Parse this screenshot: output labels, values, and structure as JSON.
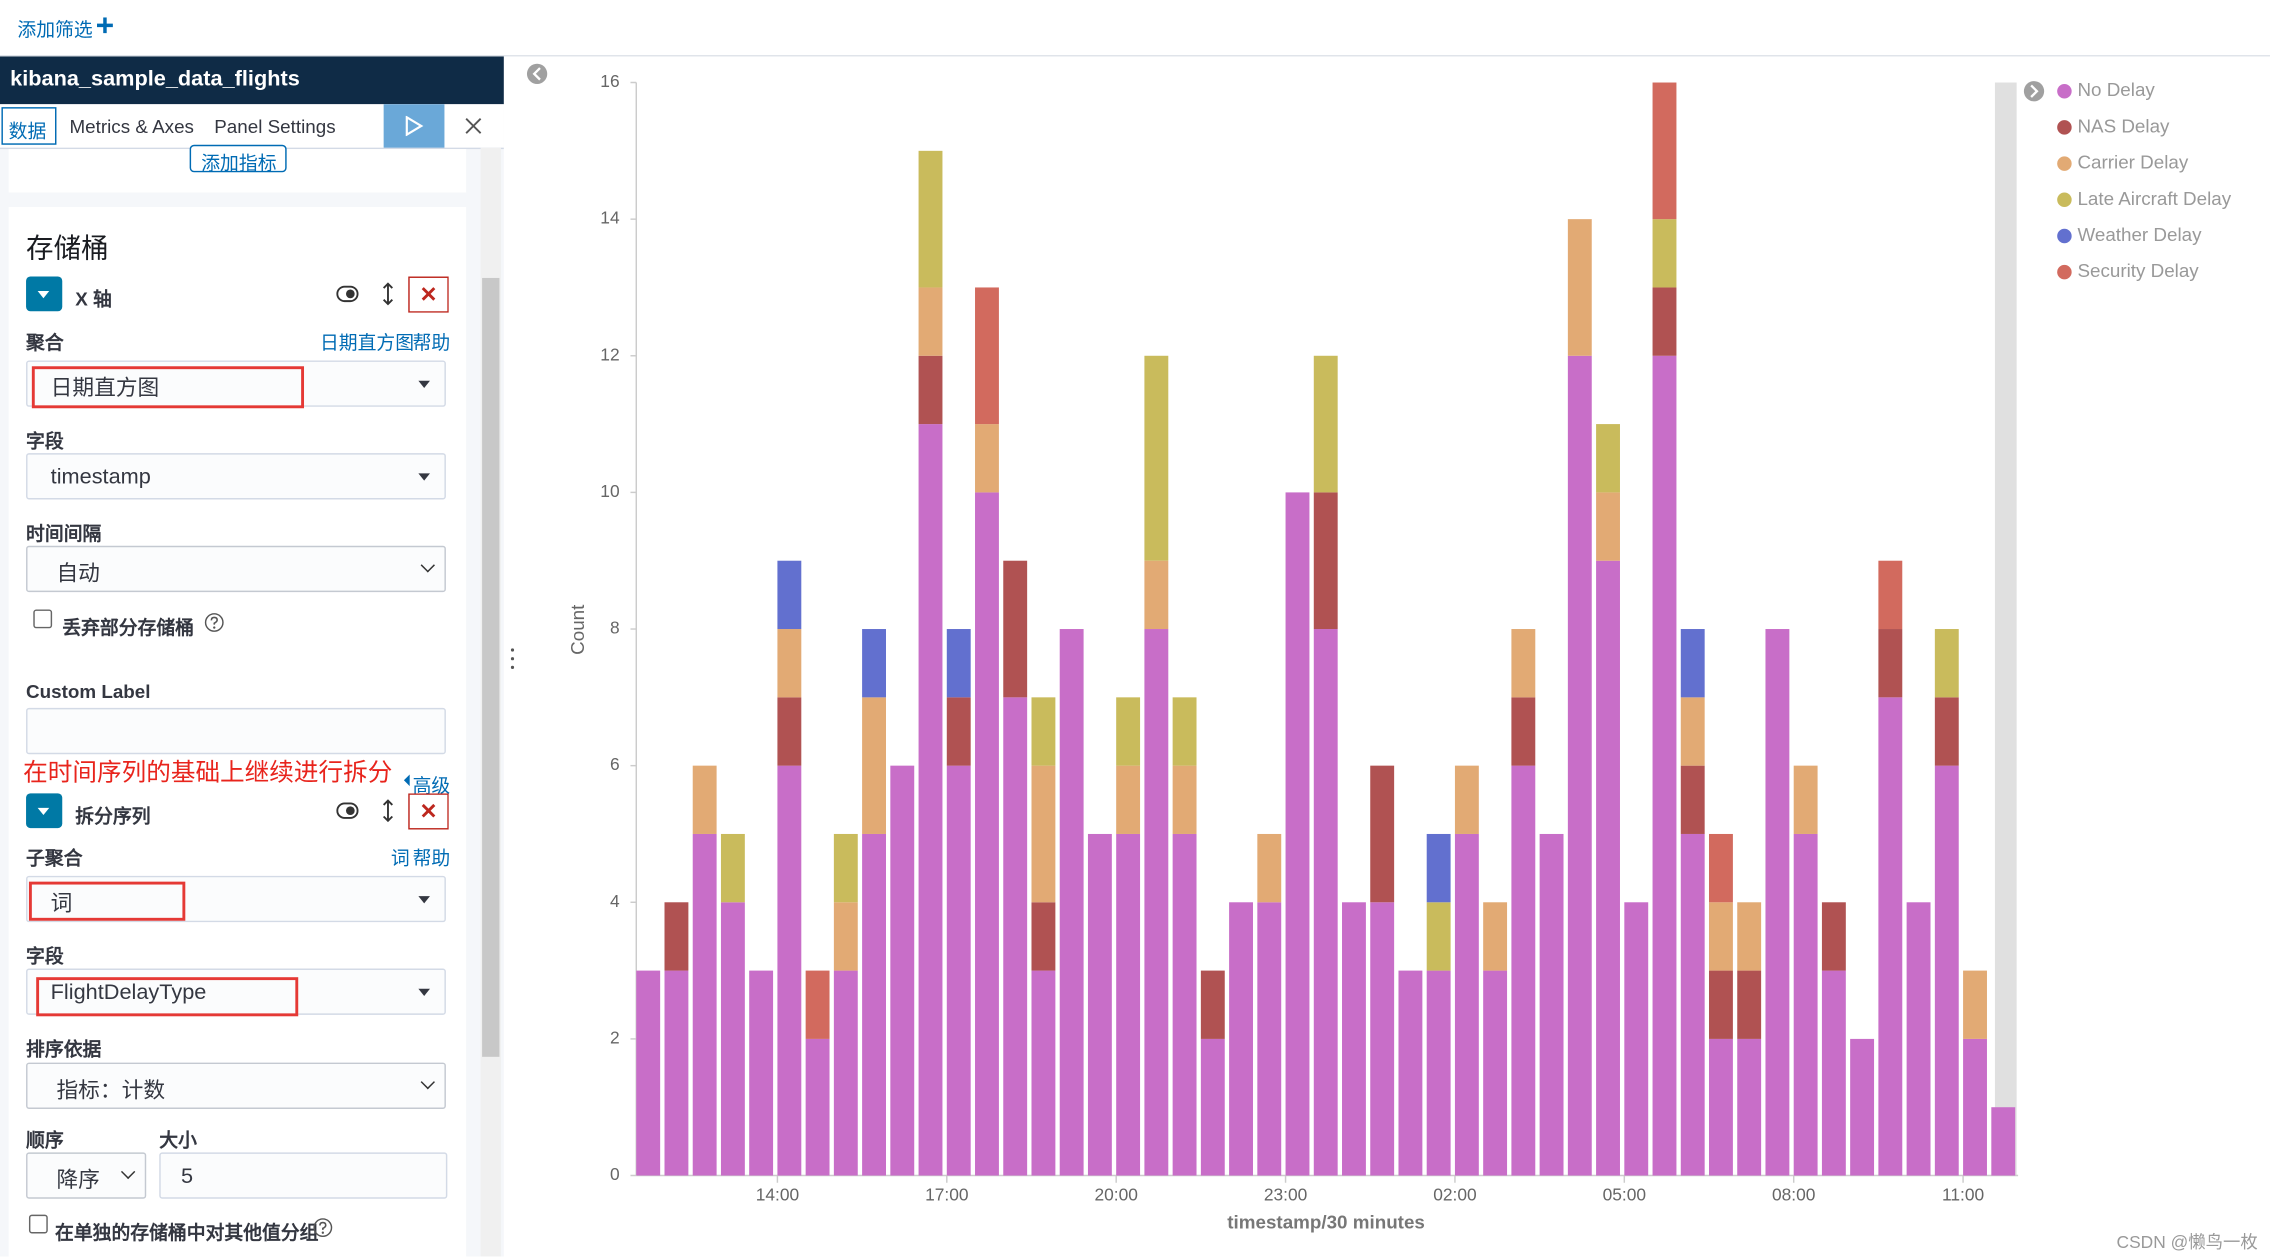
{
  "toolbar": {
    "add_filter": "添加筛选"
  },
  "sidebar": {
    "index_title": "kibana_sample_data_flights",
    "tabs": [
      "数据",
      "Metrics & Axes",
      "Panel Settings"
    ],
    "add_metric": "添加指标",
    "buckets_title": "存储桶",
    "x_axis": {
      "label": "X 轴",
      "aggregation_label": "聚合",
      "aggregation_link": "日期直方图",
      "help_link": "帮助",
      "aggregation": "日期直方图",
      "field_label": "字段",
      "field": "timestamp",
      "interval_label": "时间间隔",
      "interval": "自动",
      "drop_partial": "丢弃部分存储桶",
      "custom_label": "Custom Label"
    },
    "annotation": "在时间序列的基础上继续进行拆分",
    "advanced": "高级",
    "split": {
      "label": "拆分序列",
      "sub_agg_label": "子聚合",
      "sub_agg_link": "词",
      "help_link": "帮助",
      "sub_agg": "词",
      "field_label": "字段",
      "field": "FlightDelayType",
      "order_by_label": "排序依据",
      "order_by": "指标：计数",
      "order_label": "顺序",
      "order": "降序",
      "size_label": "大小",
      "size": 5,
      "other_bucket": "在单独的存储桶中对其他值分组"
    }
  },
  "chart_data": {
    "type": "bar",
    "stacked": true,
    "xlabel": "timestamp/30 minutes",
    "ylabel": "Count",
    "ylim": [
      0,
      16
    ],
    "yticks": [
      0,
      2,
      4,
      6,
      8,
      10,
      12,
      14,
      16
    ],
    "grid": false,
    "legend": "right",
    "categories": [
      null,
      null,
      null,
      null,
      null,
      "14:00",
      null,
      null,
      null,
      null,
      null,
      "17:00",
      null,
      null,
      null,
      null,
      null,
      "20:00",
      null,
      null,
      null,
      null,
      null,
      "23:00",
      null,
      null,
      null,
      null,
      null,
      "02:00",
      null,
      null,
      null,
      null,
      null,
      "05:00",
      null,
      null,
      null,
      null,
      null,
      "08:00",
      null,
      null,
      null,
      null,
      null,
      "11:00",
      null
    ],
    "series": [
      {
        "name": "No Delay",
        "color": "#c86ec8",
        "values": [
          3,
          3,
          5,
          4,
          3,
          6,
          2,
          3,
          5,
          6,
          11,
          6,
          10,
          7,
          3,
          8,
          5,
          5,
          8,
          5,
          2,
          4,
          4,
          10,
          8,
          4,
          4,
          3,
          3,
          5,
          3,
          6,
          5,
          12,
          9,
          4,
          12,
          5,
          2,
          2,
          8,
          5,
          3,
          2,
          7,
          4,
          6,
          2,
          1
        ]
      },
      {
        "name": "NAS Delay",
        "color": "#b05252",
        "values": [
          0,
          1,
          0,
          0,
          0,
          1,
          0,
          0,
          0,
          0,
          1,
          1,
          0,
          2,
          1,
          0,
          0,
          0,
          0,
          0,
          1,
          0,
          0,
          0,
          2,
          0,
          2,
          0,
          0,
          0,
          0,
          1,
          0,
          0,
          0,
          0,
          1,
          1,
          1,
          1,
          0,
          0,
          1,
          0,
          1,
          0,
          1,
          0,
          0
        ]
      },
      {
        "name": "Carrier Delay",
        "color": "#e2aa74",
        "values": [
          0,
          0,
          1,
          0,
          0,
          1,
          0,
          1,
          2,
          0,
          1,
          0,
          1,
          0,
          2,
          0,
          0,
          1,
          1,
          1,
          0,
          0,
          1,
          0,
          0,
          0,
          0,
          0,
          0,
          1,
          1,
          1,
          0,
          2,
          1,
          0,
          0,
          1,
          1,
          1,
          0,
          1,
          0,
          0,
          0,
          0,
          0,
          1,
          0
        ]
      },
      {
        "name": "Late Aircraft Delay",
        "color": "#c9bb5c",
        "values": [
          0,
          0,
          0,
          1,
          0,
          0,
          0,
          1,
          0,
          0,
          2,
          0,
          0,
          0,
          1,
          0,
          0,
          1,
          3,
          1,
          0,
          0,
          0,
          0,
          2,
          0,
          0,
          0,
          1,
          0,
          0,
          0,
          0,
          0,
          1,
          0,
          1,
          0,
          0,
          0,
          0,
          0,
          0,
          0,
          0,
          0,
          1,
          0,
          0
        ]
      },
      {
        "name": "Weather Delay",
        "color": "#6270cf",
        "values": [
          0,
          0,
          0,
          0,
          0,
          1,
          0,
          0,
          1,
          0,
          0,
          1,
          0,
          0,
          0,
          0,
          0,
          0,
          0,
          0,
          0,
          0,
          0,
          0,
          0,
          0,
          0,
          0,
          1,
          0,
          0,
          0,
          0,
          0,
          0,
          0,
          0,
          1,
          0,
          0,
          0,
          0,
          0,
          0,
          0,
          0,
          0,
          0,
          0
        ]
      },
      {
        "name": "Security Delay",
        "color": "#d26a5e",
        "values": [
          0,
          0,
          0,
          0,
          0,
          0,
          1,
          0,
          0,
          0,
          0,
          0,
          2,
          0,
          0,
          0,
          0,
          0,
          0,
          0,
          0,
          0,
          0,
          0,
          0,
          0,
          0,
          0,
          0,
          0,
          0,
          0,
          0,
          0,
          0,
          0,
          2,
          0,
          1,
          0,
          0,
          0,
          0,
          0,
          1,
          0,
          0,
          0,
          0
        ]
      }
    ]
  },
  "watermark": "CSDN @懒鸟一枚"
}
